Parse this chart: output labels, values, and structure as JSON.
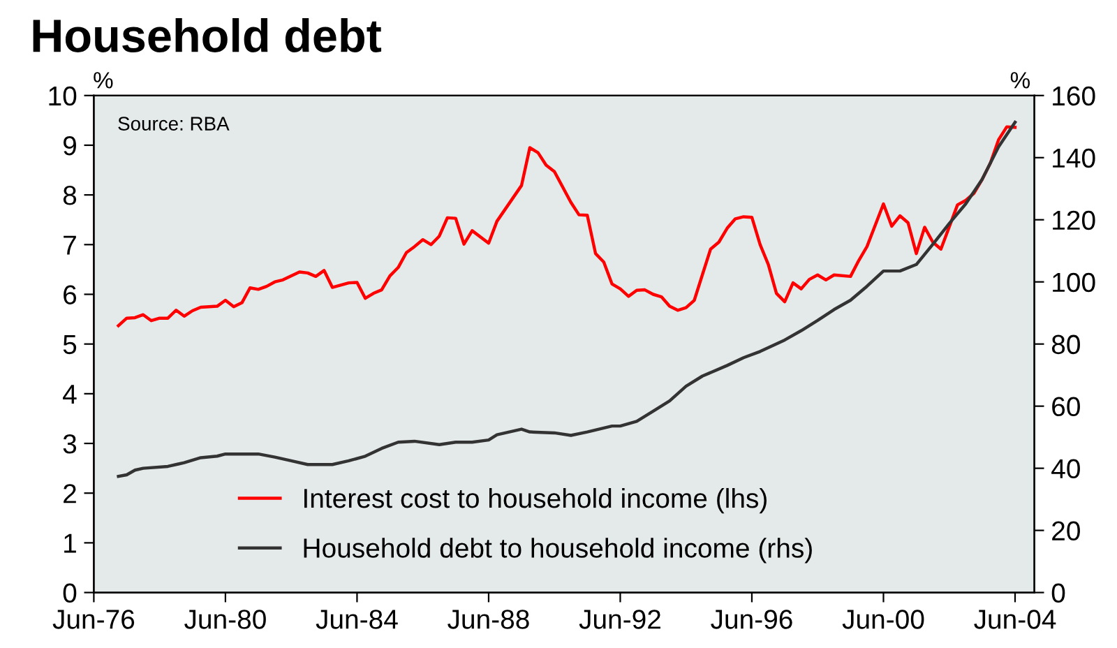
{
  "chart_data": {
    "type": "line",
    "title": "Household debt",
    "ylabel": "%",
    "y2label": "%",
    "annotations": [
      "Source: RBA"
    ],
    "xlim": [
      "1976-06",
      "2005-01"
    ],
    "xticks": [
      {
        "value": "1976-06",
        "label": "Jun-76"
      },
      {
        "value": "1980-06",
        "label": "Jun-80"
      },
      {
        "value": "1984-06",
        "label": "Jun-84"
      },
      {
        "value": "1988-06",
        "label": "Jun-88"
      },
      {
        "value": "1992-06",
        "label": "Jun-92"
      },
      {
        "value": "1996-06",
        "label": "Jun-96"
      },
      {
        "value": "2000-06",
        "label": "Jun-00"
      },
      {
        "value": "2004-06",
        "label": "Jun-04"
      }
    ],
    "ylim": [
      0,
      10
    ],
    "yticks": [
      0,
      1,
      2,
      3,
      4,
      5,
      6,
      7,
      8,
      9,
      10
    ],
    "y2lim": [
      0,
      160
    ],
    "y2ticks": [
      0,
      20,
      40,
      60,
      80,
      100,
      120,
      140,
      160
    ],
    "grid": false,
    "legend": "bottom",
    "marker": "none",
    "line_style": "solid",
    "series": [
      {
        "name": "Interest cost to household income (lhs)",
        "color": "#ff0000",
        "x": [
          "1977-03",
          "1977-06",
          "1977-09",
          "1977-12",
          "1978-03",
          "1978-06",
          "1978-09",
          "1978-12",
          "1979-03",
          "1979-06",
          "1979-09",
          "1980-03",
          "1980-06",
          "1980-09",
          "1980-12",
          "1981-03",
          "1981-06",
          "1981-09",
          "1981-12",
          "1982-03",
          "1982-09",
          "1982-12",
          "1983-03",
          "1983-06",
          "1983-09",
          "1984-03",
          "1984-06",
          "1984-09",
          "1984-12",
          "1985-03",
          "1985-06",
          "1985-09",
          "1985-12",
          "1986-03",
          "1986-06",
          "1986-09",
          "1986-12",
          "1987-03",
          "1987-06",
          "1987-09",
          "1987-12",
          "1988-06",
          "1988-09",
          "1989-06",
          "1989-09",
          "1989-12",
          "1990-03",
          "1990-06",
          "1990-12",
          "1991-03",
          "1991-06",
          "1991-09",
          "1991-12",
          "1992-03",
          "1992-06",
          "1992-09",
          "1992-12",
          "1993-03",
          "1993-06",
          "1993-09",
          "1993-12",
          "1994-03",
          "1994-06",
          "1994-09",
          "1994-12",
          "1995-03",
          "1995-06",
          "1995-09",
          "1995-12",
          "1996-03",
          "1996-06",
          "1996-09",
          "1996-12",
          "1997-03",
          "1997-06",
          "1997-09",
          "1997-12",
          "1998-03",
          "1998-06",
          "1998-09",
          "1998-12",
          "1999-06",
          "1999-09",
          "1999-12",
          "2000-06",
          "2000-09",
          "2000-12",
          "2001-03",
          "2001-06",
          "2001-09",
          "2001-12",
          "2002-03",
          "2002-09",
          "2002-12",
          "2003-03",
          "2003-06",
          "2003-09",
          "2003-12",
          "2004-03",
          "2004-06"
        ],
        "values": [
          5.37,
          5.52,
          5.53,
          5.59,
          5.47,
          5.52,
          5.52,
          5.68,
          5.56,
          5.67,
          5.74,
          5.76,
          5.88,
          5.75,
          5.83,
          6.13,
          6.1,
          6.16,
          6.25,
          6.29,
          6.45,
          6.43,
          6.36,
          6.48,
          6.14,
          6.23,
          6.24,
          5.92,
          6.02,
          6.09,
          6.37,
          6.54,
          6.84,
          6.96,
          7.1,
          7.0,
          7.17,
          7.54,
          7.53,
          7.01,
          7.28,
          7.03,
          7.47,
          8.19,
          8.95,
          8.85,
          8.6,
          8.47,
          7.85,
          7.6,
          7.59,
          6.82,
          6.65,
          6.21,
          6.11,
          5.96,
          6.08,
          6.09,
          6.0,
          5.95,
          5.76,
          5.68,
          5.73,
          5.88,
          6.4,
          6.91,
          7.05,
          7.33,
          7.52,
          7.56,
          7.55,
          7.0,
          6.6,
          6.02,
          5.85,
          6.23,
          6.11,
          6.3,
          6.39,
          6.29,
          6.39,
          6.36,
          6.68,
          6.96,
          7.82,
          7.37,
          7.58,
          7.44,
          6.82,
          7.35,
          7.05,
          6.91,
          7.8,
          7.89,
          8.03,
          8.31,
          8.64,
          9.11,
          9.37,
          9.36
        ]
      },
      {
        "name": "Household debt to household income (rhs)",
        "color": "#333333",
        "axis": "y2",
        "x": [
          "1977-03",
          "1977-06",
          "1977-09",
          "1977-12",
          "1978-09",
          "1979-03",
          "1979-09",
          "1980-03",
          "1980-06",
          "1980-12",
          "1981-06",
          "1981-12",
          "1982-06",
          "1982-12",
          "1983-09",
          "1984-03",
          "1984-09",
          "1985-03",
          "1985-09",
          "1986-03",
          "1986-12",
          "1987-06",
          "1987-12",
          "1988-06",
          "1988-09",
          "1989-06",
          "1989-09",
          "1990-06",
          "1990-12",
          "1991-06",
          "1992-03",
          "1992-06",
          "1992-12",
          "1993-06",
          "1993-12",
          "1994-06",
          "1994-12",
          "1995-09",
          "1996-03",
          "1996-09",
          "1997-06",
          "1997-12",
          "1998-06",
          "1998-12",
          "1999-06",
          "1999-12",
          "2000-06",
          "2000-12",
          "2001-06",
          "2001-12",
          "2002-06",
          "2002-12",
          "2003-06",
          "2003-12",
          "2004-06"
        ],
        "values": [
          37.4,
          37.9,
          39.4,
          40.0,
          40.6,
          41.8,
          43.4,
          43.9,
          44.6,
          44.6,
          44.6,
          43.6,
          42.4,
          41.2,
          41.2,
          42.4,
          43.9,
          46.4,
          48.4,
          48.7,
          47.6,
          48.4,
          48.4,
          49.1,
          50.8,
          52.6,
          51.7,
          51.4,
          50.6,
          51.7,
          53.6,
          53.6,
          55.1,
          58.4,
          61.7,
          66.4,
          69.7,
          73.1,
          75.6,
          77.6,
          81.3,
          84.3,
          87.6,
          91.1,
          94.1,
          98.6,
          103.5,
          103.5,
          105.6,
          112.1,
          118.8,
          125.1,
          133.0,
          143.5,
          151.4
        ]
      }
    ]
  }
}
